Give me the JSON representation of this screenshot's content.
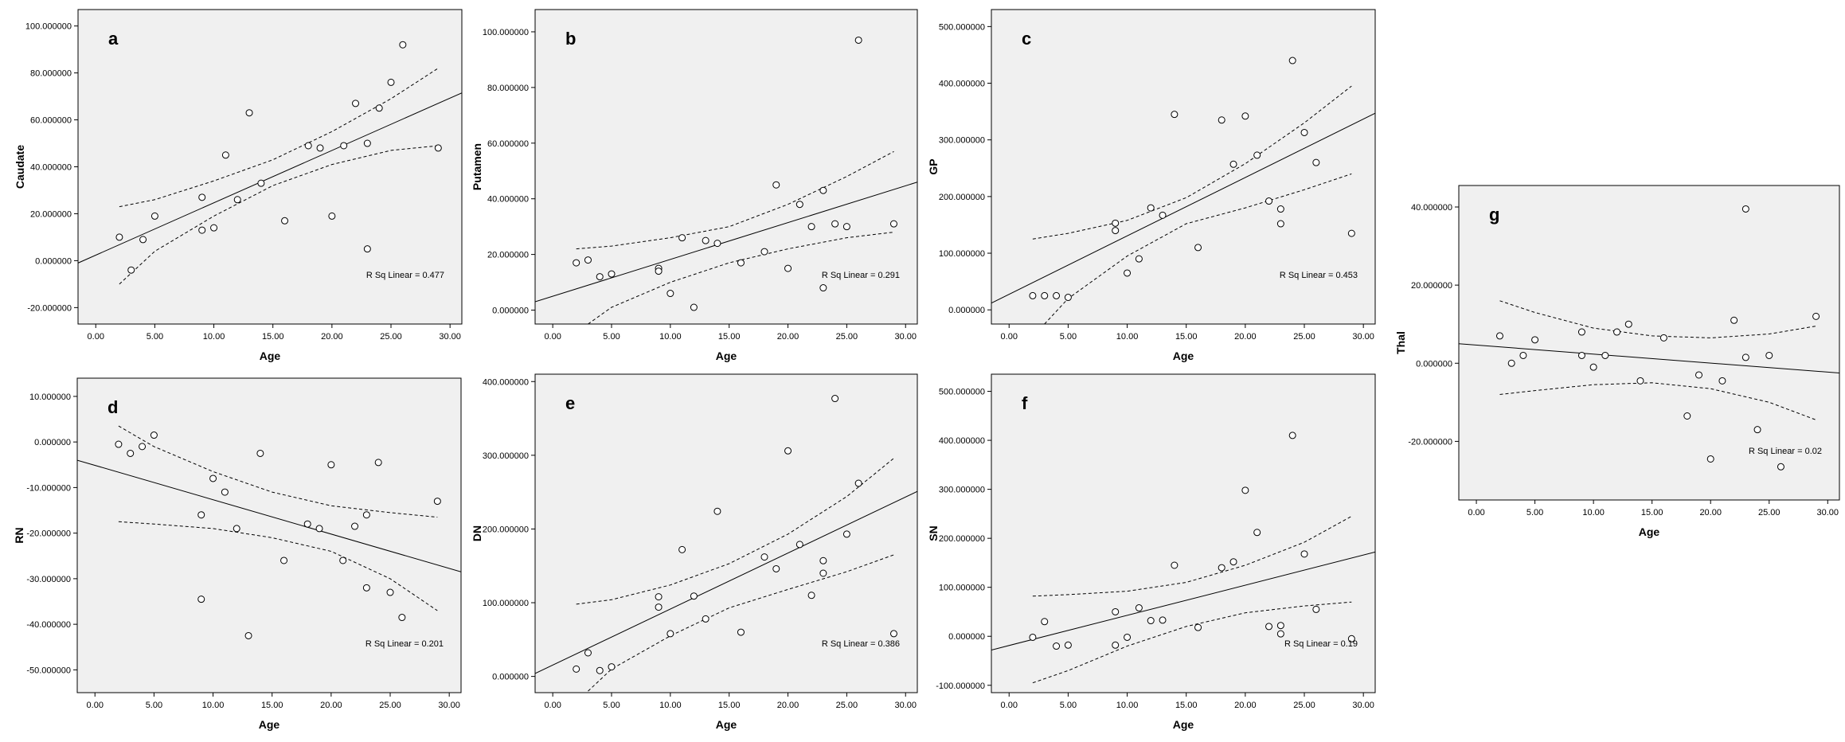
{
  "chart_data": [
    {
      "panel": "a",
      "type": "scatter",
      "xlabel": "Age",
      "ylabel": "Caudate",
      "xlim": [
        -1.5,
        31
      ],
      "ylim": [
        -27,
        107
      ],
      "xticks": [
        "0.00",
        "5.00",
        "10.00",
        "15.00",
        "20.00",
        "25.00",
        "30.00"
      ],
      "yticks": [
        "-20.000000",
        "0.000000",
        "20.000000",
        "40.000000",
        "60.000000",
        "80.000000",
        "100.000000"
      ],
      "points": [
        [
          2,
          10
        ],
        [
          3,
          -4
        ],
        [
          4,
          9
        ],
        [
          5,
          19
        ],
        [
          9,
          27
        ],
        [
          9,
          13
        ],
        [
          10,
          14
        ],
        [
          11,
          45
        ],
        [
          12,
          26
        ],
        [
          13,
          63
        ],
        [
          14,
          33
        ],
        [
          16,
          17
        ],
        [
          18,
          49
        ],
        [
          19,
          48
        ],
        [
          20,
          19
        ],
        [
          21,
          49
        ],
        [
          22,
          67
        ],
        [
          23,
          50
        ],
        [
          23,
          5
        ],
        [
          24,
          65
        ],
        [
          25,
          76
        ],
        [
          26,
          92
        ],
        [
          29,
          48
        ]
      ],
      "fit": [
        [
          -1.5,
          -1
        ],
        [
          31,
          71.5
        ]
      ],
      "ci_upper": [
        [
          2,
          23
        ],
        [
          5,
          26
        ],
        [
          10,
          34
        ],
        [
          15,
          43
        ],
        [
          20,
          55
        ],
        [
          25,
          69
        ],
        [
          29,
          82
        ]
      ],
      "ci_lower": [
        [
          2,
          -10
        ],
        [
          5,
          4
        ],
        [
          10,
          19
        ],
        [
          15,
          32
        ],
        [
          20,
          41
        ],
        [
          25,
          47
        ],
        [
          29,
          49
        ]
      ],
      "r_sq": "R Sq Linear = 0.477"
    },
    {
      "panel": "b",
      "type": "scatter",
      "xlabel": "Age",
      "ylabel": "Putamen",
      "xlim": [
        -1.5,
        31
      ],
      "ylim": [
        -5,
        108
      ],
      "xticks": [
        "0.00",
        "5.00",
        "10.00",
        "15.00",
        "20.00",
        "25.00",
        "30.00"
      ],
      "yticks": [
        "0.000000",
        "20.000000",
        "40.000000",
        "60.000000",
        "80.000000",
        "100.000000"
      ],
      "points": [
        [
          2,
          17
        ],
        [
          3,
          18
        ],
        [
          4,
          12
        ],
        [
          5,
          13
        ],
        [
          9,
          15
        ],
        [
          9,
          14
        ],
        [
          10,
          6
        ],
        [
          11,
          26
        ],
        [
          12,
          1
        ],
        [
          13,
          25
        ],
        [
          14,
          24
        ],
        [
          16,
          17
        ],
        [
          18,
          21
        ],
        [
          19,
          45
        ],
        [
          20,
          15
        ],
        [
          21,
          38
        ],
        [
          22,
          30
        ],
        [
          23,
          43
        ],
        [
          23,
          8
        ],
        [
          24,
          31
        ],
        [
          25,
          30
        ],
        [
          26,
          97
        ],
        [
          29,
          31
        ]
      ],
      "fit": [
        [
          -1.5,
          3
        ],
        [
          31,
          46
        ]
      ],
      "ci_upper": [
        [
          2,
          22
        ],
        [
          5,
          23
        ],
        [
          10,
          26
        ],
        [
          15,
          30
        ],
        [
          20,
          38
        ],
        [
          25,
          48
        ],
        [
          29,
          57
        ]
      ],
      "ci_lower": [
        [
          3,
          -5
        ],
        [
          5,
          1
        ],
        [
          10,
          10
        ],
        [
          15,
          17
        ],
        [
          20,
          22
        ],
        [
          25,
          26
        ],
        [
          29,
          28
        ]
      ],
      "r_sq": "R Sq Linear = 0.291"
    },
    {
      "panel": "c",
      "type": "scatter",
      "xlabel": "Age",
      "ylabel": "GP",
      "xlim": [
        -1.5,
        31
      ],
      "ylim": [
        -25,
        530
      ],
      "xticks": [
        "0.00",
        "5.00",
        "10.00",
        "15.00",
        "20.00",
        "25.00",
        "30.00"
      ],
      "yticks": [
        "0.000000",
        "100.000000",
        "200.000000",
        "300.000000",
        "400.000000",
        "500.000000"
      ],
      "points": [
        [
          2,
          25
        ],
        [
          3,
          25
        ],
        [
          4,
          25
        ],
        [
          5,
          22
        ],
        [
          9,
          153
        ],
        [
          9,
          140
        ],
        [
          10,
          65
        ],
        [
          11,
          90
        ],
        [
          12,
          180
        ],
        [
          13,
          167
        ],
        [
          14,
          345
        ],
        [
          16,
          110
        ],
        [
          18,
          335
        ],
        [
          19,
          257
        ],
        [
          20,
          342
        ],
        [
          21,
          273
        ],
        [
          22,
          192
        ],
        [
          23,
          178
        ],
        [
          23,
          152
        ],
        [
          24,
          440
        ],
        [
          25,
          313
        ],
        [
          26,
          260
        ],
        [
          29,
          135
        ]
      ],
      "fit": [
        [
          -1.5,
          12
        ],
        [
          31,
          347
        ]
      ],
      "ci_upper": [
        [
          2,
          125
        ],
        [
          5,
          135
        ],
        [
          10,
          158
        ],
        [
          15,
          198
        ],
        [
          20,
          258
        ],
        [
          25,
          330
        ],
        [
          29,
          395
        ]
      ],
      "ci_lower": [
        [
          3,
          -25
        ],
        [
          5,
          20
        ],
        [
          10,
          95
        ],
        [
          15,
          152
        ],
        [
          20,
          180
        ],
        [
          25,
          212
        ],
        [
          29,
          240
        ]
      ],
      "r_sq": "R Sq Linear = 0.453"
    },
    {
      "panel": "d",
      "type": "scatter",
      "xlabel": "Age",
      "ylabel": "RN",
      "xlim": [
        -1.5,
        31
      ],
      "ylim": [
        -55,
        14
      ],
      "xticks": [
        "0.00",
        "5.00",
        "10.00",
        "15.00",
        "20.00",
        "25.00",
        "30.00"
      ],
      "yticks": [
        "-50.000000",
        "-40.000000",
        "-30.000000",
        "-20.000000",
        "-10.000000",
        "0.000000",
        "10.000000"
      ],
      "points": [
        [
          2,
          -0.5
        ],
        [
          3,
          -2.5
        ],
        [
          4,
          -1
        ],
        [
          5,
          1.5
        ],
        [
          9,
          -16
        ],
        [
          9,
          -34.5
        ],
        [
          10,
          -8
        ],
        [
          11,
          -11
        ],
        [
          12,
          -19
        ],
        [
          13,
          -42.5
        ],
        [
          14,
          -2.5
        ],
        [
          16,
          -26
        ],
        [
          18,
          -18
        ],
        [
          19,
          -19
        ],
        [
          20,
          -5
        ],
        [
          21,
          -26
        ],
        [
          22,
          -18.5
        ],
        [
          23,
          -16
        ],
        [
          23,
          -32
        ],
        [
          24,
          -4.5
        ],
        [
          25,
          -33
        ],
        [
          26,
          -38.5
        ],
        [
          29,
          -13
        ]
      ],
      "fit": [
        [
          -1.5,
          -4
        ],
        [
          31,
          -28.5
        ]
      ],
      "ci_upper": [
        [
          2,
          3.5
        ],
        [
          5,
          -1
        ],
        [
          10,
          -6.5
        ],
        [
          15,
          -11
        ],
        [
          20,
          -14
        ],
        [
          25,
          -15.5
        ],
        [
          29,
          -16.5
        ]
      ],
      "ci_lower": [
        [
          2,
          -17.5
        ],
        [
          5,
          -18
        ],
        [
          10,
          -19
        ],
        [
          15,
          -21
        ],
        [
          20,
          -24
        ],
        [
          25,
          -30
        ],
        [
          29,
          -37
        ]
      ],
      "r_sq": "R Sq Linear = 0.201"
    },
    {
      "panel": "e",
      "type": "scatter",
      "xlabel": "Age",
      "ylabel": "DN",
      "xlim": [
        -1.5,
        31
      ],
      "ylim": [
        -22,
        410
      ],
      "xticks": [
        "0.00",
        "5.00",
        "10.00",
        "15.00",
        "20.00",
        "25.00",
        "30.00"
      ],
      "yticks": [
        "0.000000",
        "100.000000",
        "200.000000",
        "300.000000",
        "400.000000"
      ],
      "points": [
        [
          2,
          10
        ],
        [
          3,
          32
        ],
        [
          4,
          8
        ],
        [
          5,
          13
        ],
        [
          9,
          108
        ],
        [
          9,
          94
        ],
        [
          10,
          58
        ],
        [
          11,
          172
        ],
        [
          12,
          109
        ],
        [
          13,
          78
        ],
        [
          14,
          224
        ],
        [
          16,
          60
        ],
        [
          18,
          162
        ],
        [
          19,
          146
        ],
        [
          20,
          306
        ],
        [
          21,
          179
        ],
        [
          22,
          110
        ],
        [
          23,
          157
        ],
        [
          23,
          140
        ],
        [
          24,
          377
        ],
        [
          25,
          193
        ],
        [
          26,
          262
        ],
        [
          29,
          58
        ]
      ],
      "fit": [
        [
          -1.5,
          4
        ],
        [
          31,
          251
        ]
      ],
      "ci_upper": [
        [
          2,
          98
        ],
        [
          5,
          104
        ],
        [
          10,
          124
        ],
        [
          15,
          153
        ],
        [
          20,
          193
        ],
        [
          25,
          244
        ],
        [
          29,
          296
        ]
      ],
      "ci_lower": [
        [
          3,
          -20
        ],
        [
          5,
          10
        ],
        [
          10,
          55
        ],
        [
          15,
          93
        ],
        [
          20,
          118
        ],
        [
          25,
          142
        ],
        [
          29,
          165
        ]
      ],
      "r_sq": "R Sq Linear = 0.386"
    },
    {
      "panel": "f",
      "type": "scatter",
      "xlabel": "Age",
      "ylabel": "SN",
      "xlim": [
        -1.5,
        31
      ],
      "ylim": [
        -115,
        535
      ],
      "xticks": [
        "0.00",
        "5.00",
        "10.00",
        "15.00",
        "20.00",
        "25.00",
        "30.00"
      ],
      "yticks": [
        "-100.000000",
        "0.000000",
        "100.000000",
        "200.000000",
        "300.000000",
        "400.000000",
        "500.000000"
      ],
      "points": [
        [
          2,
          -2
        ],
        [
          3,
          30
        ],
        [
          4,
          -20
        ],
        [
          5,
          -18
        ],
        [
          9,
          50
        ],
        [
          9,
          -18
        ],
        [
          10,
          -2
        ],
        [
          11,
          58
        ],
        [
          12,
          32
        ],
        [
          13,
          33
        ],
        [
          14,
          145
        ],
        [
          16,
          18
        ],
        [
          18,
          140
        ],
        [
          19,
          152
        ],
        [
          20,
          298
        ],
        [
          21,
          212
        ],
        [
          22,
          20
        ],
        [
          23,
          22
        ],
        [
          23,
          5
        ],
        [
          24,
          410
        ],
        [
          25,
          168
        ],
        [
          26,
          55
        ],
        [
          29,
          -5
        ]
      ],
      "fit": [
        [
          -1.5,
          -28
        ],
        [
          31,
          172
        ]
      ],
      "ci_upper": [
        [
          2,
          82
        ],
        [
          5,
          85
        ],
        [
          10,
          92
        ],
        [
          15,
          110
        ],
        [
          20,
          145
        ],
        [
          25,
          192
        ],
        [
          29,
          245
        ]
      ],
      "ci_lower": [
        [
          2,
          -95
        ],
        [
          5,
          -70
        ],
        [
          10,
          -20
        ],
        [
          15,
          20
        ],
        [
          20,
          48
        ],
        [
          25,
          62
        ],
        [
          29,
          70
        ]
      ],
      "r_sq": "R Sq Linear = 0.19"
    },
    {
      "panel": "g",
      "type": "scatter",
      "xlabel": "Age",
      "ylabel": "Thal",
      "xlim": [
        -1.5,
        31
      ],
      "ylim": [
        -35,
        45.5
      ],
      "xticks": [
        "0.00",
        "5.00",
        "10.00",
        "15.00",
        "20.00",
        "25.00",
        "30.00"
      ],
      "yticks": [
        "-20.000000",
        "0.000000",
        "20.000000",
        "40.000000"
      ],
      "points": [
        [
          2,
          7
        ],
        [
          3,
          0
        ],
        [
          4,
          2
        ],
        [
          5,
          6
        ],
        [
          9,
          8
        ],
        [
          9,
          2
        ],
        [
          10,
          -1
        ],
        [
          11,
          2
        ],
        [
          12,
          8
        ],
        [
          13,
          10
        ],
        [
          14,
          -4.5
        ],
        [
          16,
          6.5
        ],
        [
          18,
          -13.5
        ],
        [
          19,
          -3
        ],
        [
          20,
          -24.5
        ],
        [
          21,
          -4.5
        ],
        [
          22,
          11
        ],
        [
          23,
          1.5
        ],
        [
          23,
          39.5
        ],
        [
          24,
          -17
        ],
        [
          25,
          2
        ],
        [
          26,
          -26.5
        ],
        [
          29,
          12
        ]
      ],
      "fit": [
        [
          -1.5,
          5
        ],
        [
          31,
          -2.5
        ]
      ],
      "ci_upper": [
        [
          2,
          16
        ],
        [
          5,
          13
        ],
        [
          10,
          9
        ],
        [
          15,
          7
        ],
        [
          20,
          6.5
        ],
        [
          25,
          7.5
        ],
        [
          29,
          9.5
        ]
      ],
      "ci_lower": [
        [
          2,
          -8
        ],
        [
          5,
          -7
        ],
        [
          10,
          -5.5
        ],
        [
          15,
          -5
        ],
        [
          20,
          -6.5
        ],
        [
          25,
          -10
        ],
        [
          29,
          -14.5
        ]
      ],
      "r_sq": "R Sq Linear = 0.02"
    }
  ]
}
